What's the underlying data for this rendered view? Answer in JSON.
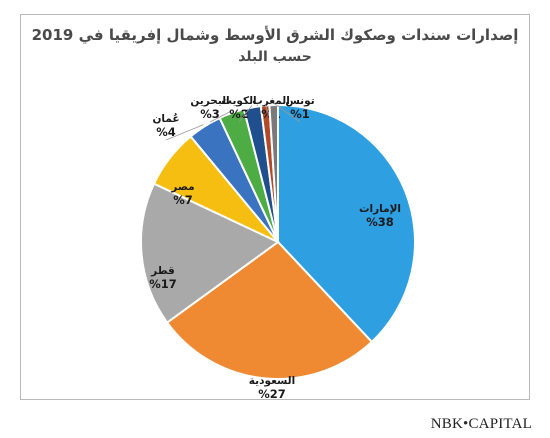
{
  "chart_data": {
    "type": "pie",
    "title": "إصدارات سندات وصكوك الشرق الأوسط وشمال إفريقيا في 2019",
    "subtitle": "حسب البلد",
    "slices": [
      {
        "name": "الإمارات",
        "value": 38,
        "label": "%38",
        "color": "#2e9fe0"
      },
      {
        "name": "السعودية",
        "value": 27,
        "label": "%27",
        "color": "#ef8a33"
      },
      {
        "name": "قطر",
        "value": 17,
        "label": "%17",
        "color": "#a9a9a9"
      },
      {
        "name": "مصر",
        "value": 7,
        "label": "%7",
        "color": "#f7be12"
      },
      {
        "name": "عُمان",
        "value": 4,
        "label": "%4",
        "color": "#3a73c0"
      },
      {
        "name": "البحرين",
        "value": 3,
        "label": "%3",
        "color": "#4eac44"
      },
      {
        "name": "الكويت",
        "value": 2,
        "label": "%2",
        "color": "#1f4f8c"
      },
      {
        "name": "المغرب",
        "value": 1,
        "label": "%1",
        "color": "#b24a28"
      },
      {
        "name": "تونس",
        "value": 1,
        "label": "%1",
        "color": "#7a7a7a"
      }
    ],
    "legend": "none"
  },
  "brand": {
    "left": "NBK",
    "sep": "•",
    "right": "CAPITAL"
  }
}
